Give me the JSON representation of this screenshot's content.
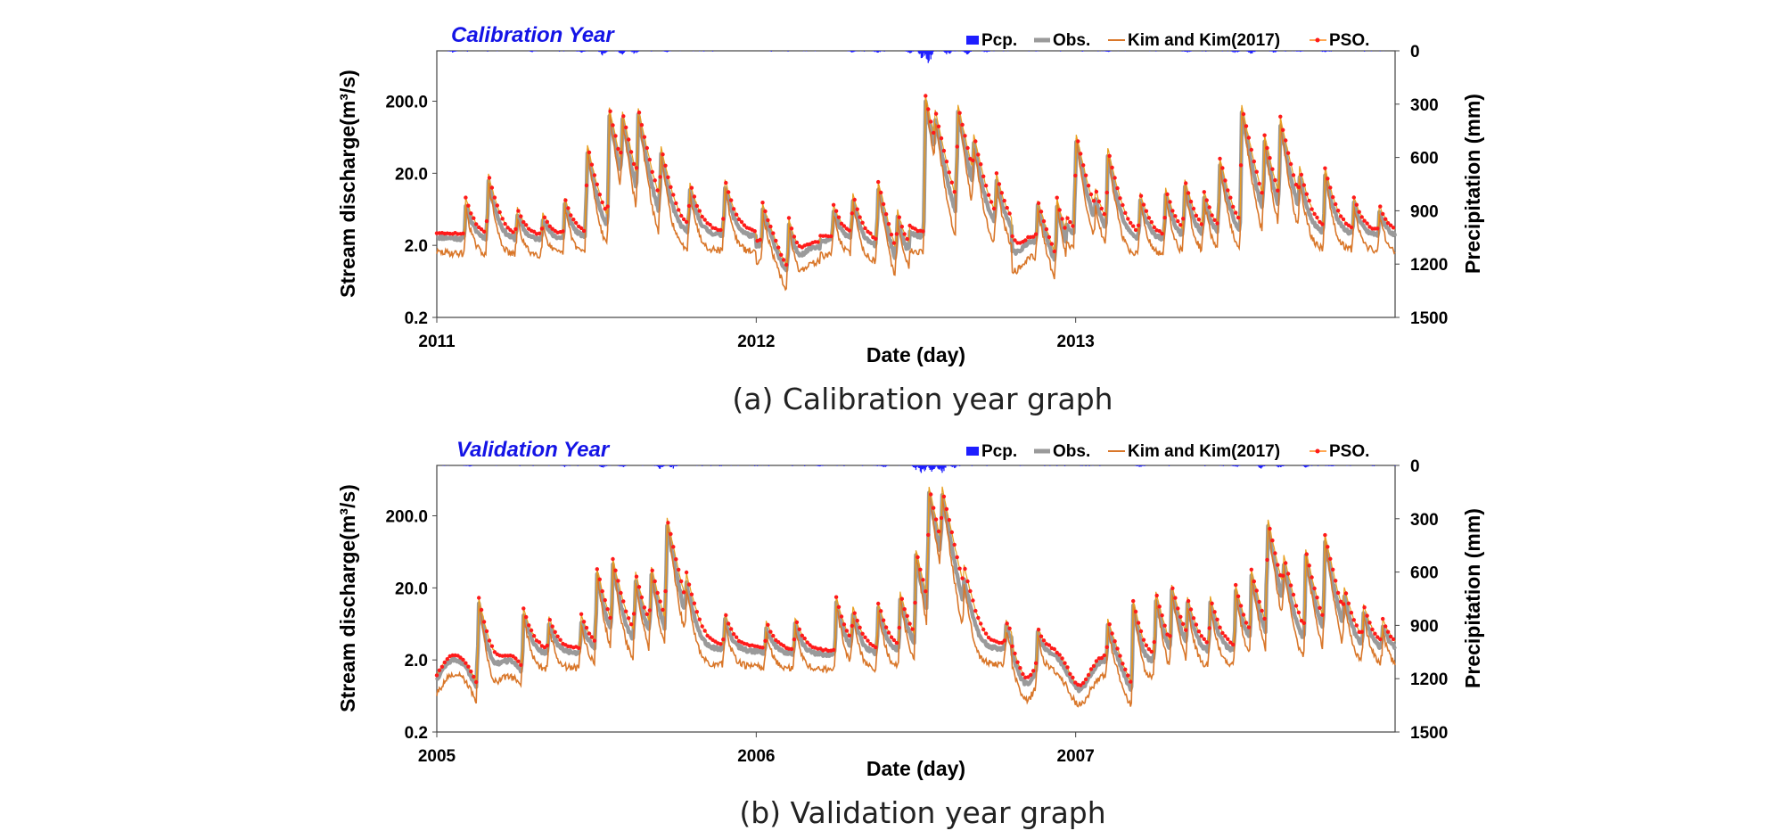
{
  "legend": [
    "Pcp.",
    "Obs.",
    "Kim and Kim(2017)",
    "PSO."
  ],
  "colors": {
    "pcp": "#1e1eff",
    "obs": "#9a9a9a",
    "kim": "#d9772a",
    "pso": "#ff1a1a",
    "title": "#1414e6"
  },
  "chart_data": [
    {
      "type": "line",
      "title": "Calibration Year",
      "caption": "(a) Calibration year graph",
      "xlabel": "Date (day)",
      "ylabel": "Stream discharge(m³/s)",
      "y2label": "Precipitation (mm)",
      "x_ticks": [
        "2011",
        "2012",
        "2013"
      ],
      "y_ticks": [
        "0.2",
        "2.0",
        "20.0",
        "200.0"
      ],
      "y2_ticks": [
        "0",
        "300",
        "600",
        "900",
        "1200",
        "1500"
      ],
      "y_scale": "log",
      "ylim": [
        0.2,
        1000
      ],
      "y2lim": [
        0,
        1500
      ],
      "xlim": [
        2011.0,
        2014.0
      ],
      "events": [
        [
          2011.09,
          6
        ],
        [
          2011.16,
          17
        ],
        [
          2011.25,
          4
        ],
        [
          2011.33,
          3
        ],
        [
          2011.4,
          6
        ],
        [
          2011.47,
          48
        ],
        [
          2011.54,
          150
        ],
        [
          2011.58,
          120
        ],
        [
          2011.63,
          140
        ],
        [
          2011.7,
          40
        ],
        [
          2011.79,
          12
        ],
        [
          2011.9,
          14
        ],
        [
          2012.02,
          5
        ],
        [
          2012.1,
          4
        ],
        [
          2012.24,
          5
        ],
        [
          2012.3,
          10
        ],
        [
          2012.38,
          14
        ],
        [
          2012.44,
          5
        ],
        [
          2012.53,
          220
        ],
        [
          2012.56,
          90
        ],
        [
          2012.63,
          180
        ],
        [
          2012.68,
          50
        ],
        [
          2012.75,
          15
        ],
        [
          2012.88,
          6
        ],
        [
          2012.94,
          8
        ],
        [
          2013.0,
          70
        ],
        [
          2013.06,
          6
        ],
        [
          2013.1,
          40
        ],
        [
          2013.2,
          8
        ],
        [
          2013.28,
          10
        ],
        [
          2013.34,
          14
        ],
        [
          2013.4,
          8
        ],
        [
          2013.45,
          30
        ],
        [
          2013.52,
          160
        ],
        [
          2013.59,
          60
        ],
        [
          2013.64,
          110
        ],
        [
          2013.7,
          15
        ],
        [
          2013.78,
          20
        ],
        [
          2013.87,
          6
        ],
        [
          2013.95,
          4
        ]
      ],
      "dry_spells": [
        [
          2012.0,
          2012.2
        ],
        [
          2012.3,
          2012.48
        ],
        [
          2012.8,
          2012.97
        ]
      ],
      "precipitation": [
        [
          2011.05,
          8
        ],
        [
          2011.3,
          6
        ],
        [
          2011.45,
          10
        ],
        [
          2011.52,
          22
        ],
        [
          2011.58,
          18
        ],
        [
          2011.62,
          14
        ],
        [
          2011.72,
          6
        ],
        [
          2012.3,
          8
        ],
        [
          2012.38,
          10
        ],
        [
          2012.48,
          12
        ],
        [
          2012.52,
          40
        ],
        [
          2012.54,
          60
        ],
        [
          2012.6,
          20
        ],
        [
          2012.66,
          16
        ],
        [
          2012.72,
          8
        ],
        [
          2013.1,
          6
        ],
        [
          2013.35,
          8
        ],
        [
          2013.5,
          12
        ],
        [
          2013.55,
          16
        ],
        [
          2013.62,
          10
        ],
        [
          2013.7,
          6
        ],
        [
          2013.78,
          8
        ]
      ]
    },
    {
      "type": "line",
      "title": "Validation Year",
      "caption": "(b) Validation year graph",
      "xlabel": "Date (day)",
      "ylabel": "Stream discharge(m³/s)",
      "y2label": "Precipitation (mm)",
      "x_ticks": [
        "2005",
        "2006",
        "2007"
      ],
      "y_ticks": [
        "0.2",
        "2.0",
        "20.0",
        "200.0"
      ],
      "y2_ticks": [
        "0",
        "300",
        "600",
        "900",
        "1200",
        "1500"
      ],
      "y_scale": "log",
      "ylim": [
        0.2,
        1000
      ],
      "y2lim": [
        0,
        1500
      ],
      "xlim": [
        2005.0,
        2008.0
      ],
      "events": [
        [
          2005.13,
          14
        ],
        [
          2005.27,
          8
        ],
        [
          2005.35,
          5
        ],
        [
          2005.45,
          6
        ],
        [
          2005.5,
          35
        ],
        [
          2005.55,
          45
        ],
        [
          2005.62,
          30
        ],
        [
          2005.67,
          35
        ],
        [
          2005.72,
          180
        ],
        [
          2005.78,
          20
        ],
        [
          2005.9,
          6
        ],
        [
          2006.03,
          4
        ],
        [
          2006.12,
          5
        ],
        [
          2006.25,
          12
        ],
        [
          2006.3,
          8
        ],
        [
          2006.38,
          10
        ],
        [
          2006.45,
          14
        ],
        [
          2006.5,
          60
        ],
        [
          2006.54,
          500
        ],
        [
          2006.58,
          450
        ],
        [
          2006.65,
          20
        ],
        [
          2006.78,
          4
        ],
        [
          2006.88,
          4
        ],
        [
          2007.1,
          5
        ],
        [
          2007.18,
          12
        ],
        [
          2007.25,
          15
        ],
        [
          2007.3,
          18
        ],
        [
          2007.35,
          10
        ],
        [
          2007.42,
          12
        ],
        [
          2007.5,
          18
        ],
        [
          2007.55,
          30
        ],
        [
          2007.6,
          180
        ],
        [
          2007.65,
          40
        ],
        [
          2007.72,
          60
        ],
        [
          2007.78,
          100
        ],
        [
          2007.84,
          12
        ],
        [
          2007.9,
          8
        ],
        [
          2007.96,
          4
        ]
      ],
      "dry_spells": [
        [
          2005.0,
          2005.27
        ],
        [
          2006.8,
          2007.3
        ]
      ],
      "precipitation": [
        [
          2005.1,
          6
        ],
        [
          2005.4,
          8
        ],
        [
          2005.52,
          12
        ],
        [
          2005.58,
          10
        ],
        [
          2005.7,
          18
        ],
        [
          2005.74,
          14
        ],
        [
          2006.2,
          6
        ],
        [
          2006.4,
          10
        ],
        [
          2006.5,
          20
        ],
        [
          2006.52,
          45
        ],
        [
          2006.55,
          30
        ],
        [
          2006.58,
          50
        ],
        [
          2006.62,
          12
        ],
        [
          2007.2,
          8
        ],
        [
          2007.5,
          10
        ],
        [
          2007.58,
          16
        ],
        [
          2007.64,
          12
        ],
        [
          2007.72,
          10
        ],
        [
          2007.8,
          6
        ]
      ]
    }
  ]
}
